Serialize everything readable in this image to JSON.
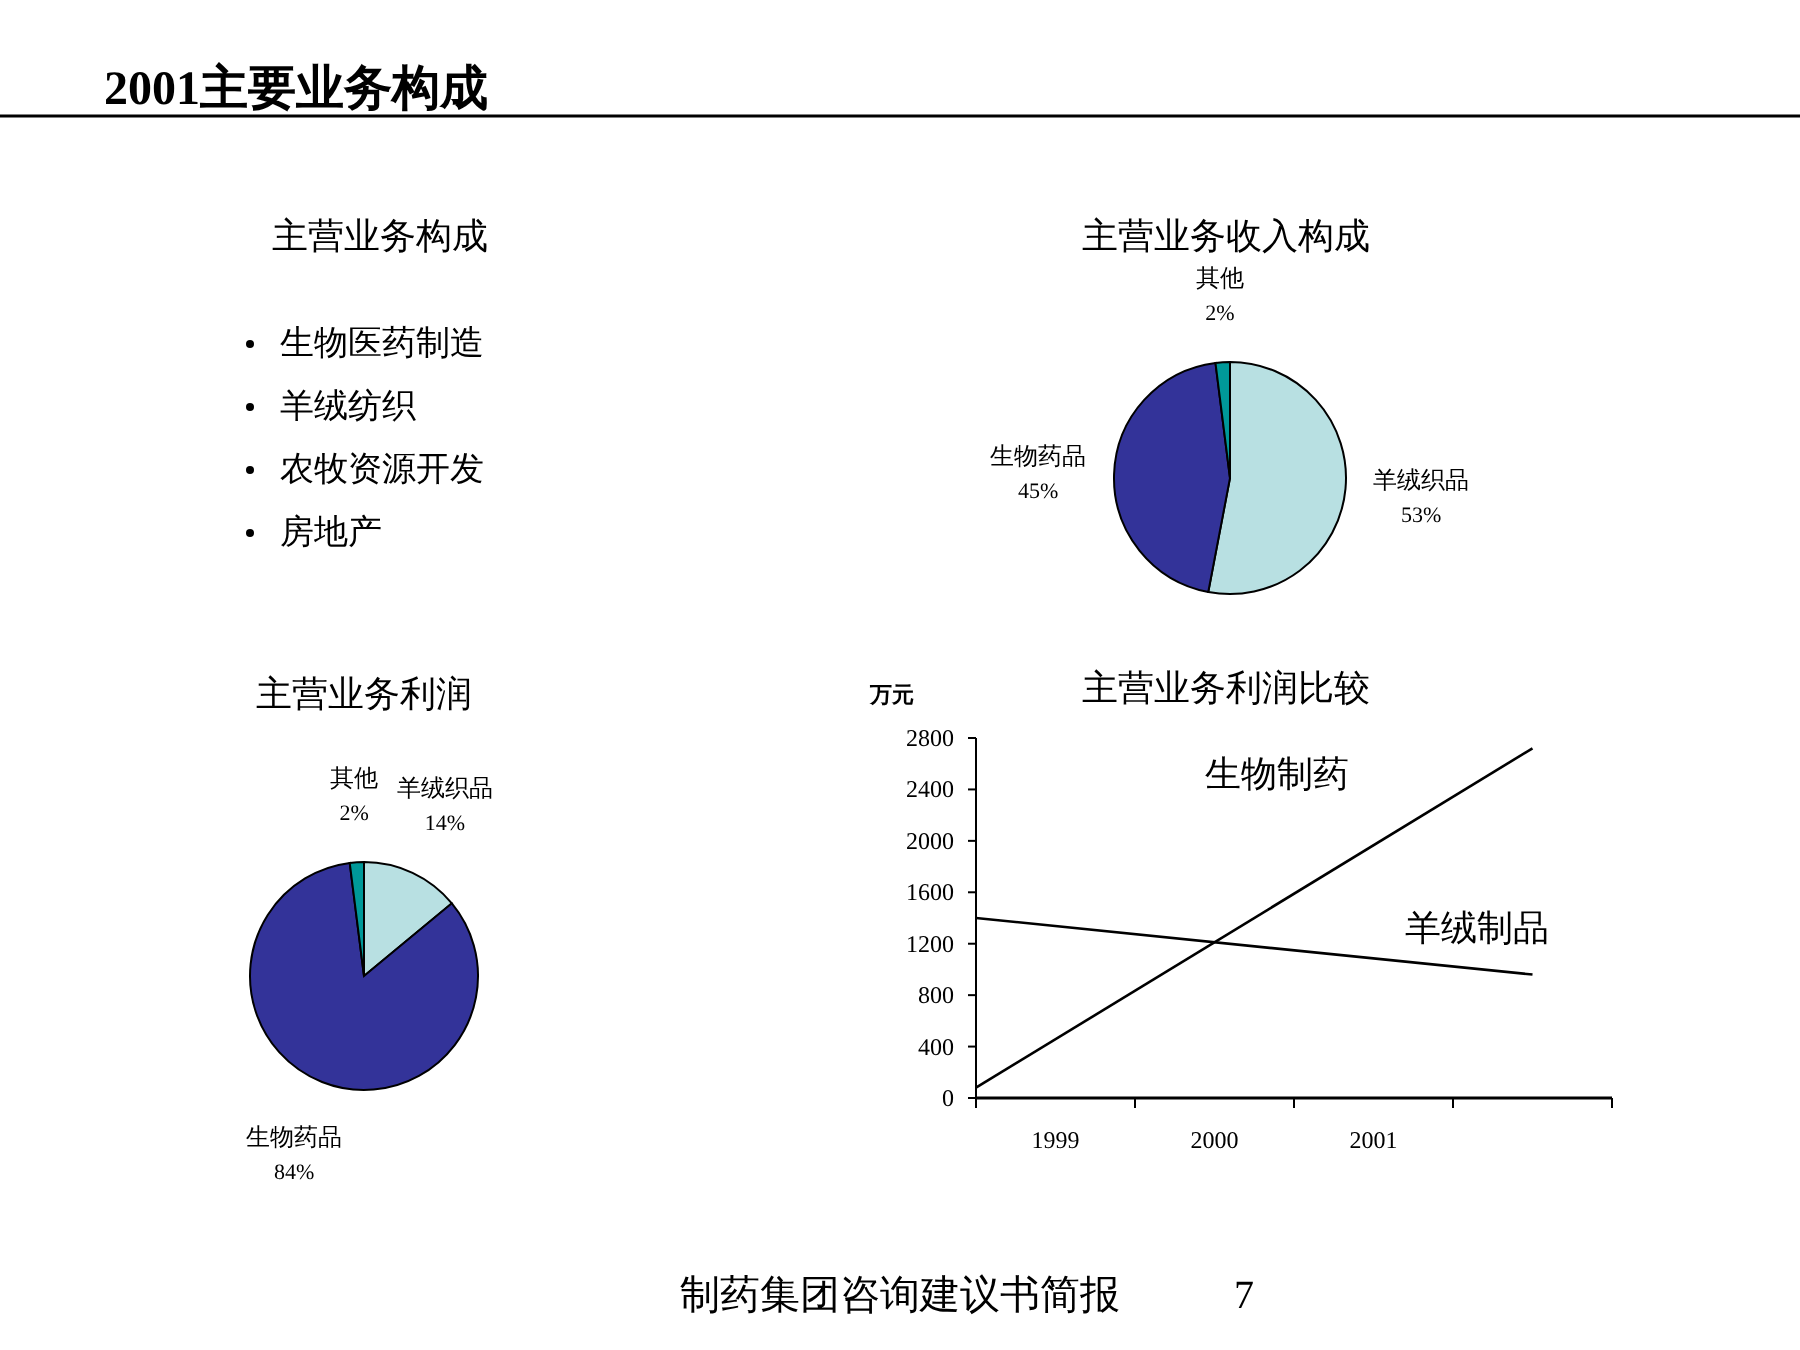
{
  "chart_data": [
    {
      "type": "other",
      "title": "2001主要业务构成",
      "annotations": [
        "制药集团咨询建议书简报",
        "7"
      ]
    },
    {
      "type": "other",
      "title": "主营业务构成",
      "annotations": [
        "生物医药制造",
        "羊绒纺织",
        "农牧资源开发",
        "房地产"
      ]
    },
    {
      "type": "pie",
      "title": "主营业务收入构成",
      "categories": [
        "羊绒织品",
        "生物药品",
        "其他"
      ],
      "values": [
        53,
        45,
        2
      ],
      "value_labels": [
        "53%",
        "45%",
        "2%"
      ],
      "colors": [
        "#b8e0e2",
        "#333399",
        "#009999"
      ]
    },
    {
      "type": "pie",
      "title": "主营业务利润",
      "categories": [
        "羊绒织品",
        "生物药品",
        "其他"
      ],
      "values": [
        14,
        84,
        2
      ],
      "value_labels": [
        "14%",
        "84%",
        "2%"
      ],
      "colors": [
        "#b8e0e2",
        "#333399",
        "#009999"
      ]
    },
    {
      "type": "line",
      "title": "主营业务利润比较",
      "ylabel": "万元",
      "xlim": [
        1998.5,
        2002.5
      ],
      "ylim": [
        0,
        2800
      ],
      "yticks": [
        0,
        400,
        800,
        1200,
        1600,
        2000,
        2400,
        2800
      ],
      "xticks": [
        {
          "value": 1998.5,
          "label": null
        },
        1999,
        {
          "value": 1999.5,
          "label": null
        },
        2000,
        {
          "value": 2000.5,
          "label": null
        },
        2001,
        {
          "value": 2001.5,
          "label": null
        },
        {
          "value": 2002.5,
          "label": null
        }
      ],
      "x": [
        1998.5,
        2002
      ],
      "series": [
        {
          "name": "生物制药",
          "color": "#000000",
          "values": [
            80,
            2720
          ]
        },
        {
          "name": "羊绒制品",
          "color": "#000000",
          "values": [
            1400,
            960
          ]
        }
      ]
    }
  ]
}
